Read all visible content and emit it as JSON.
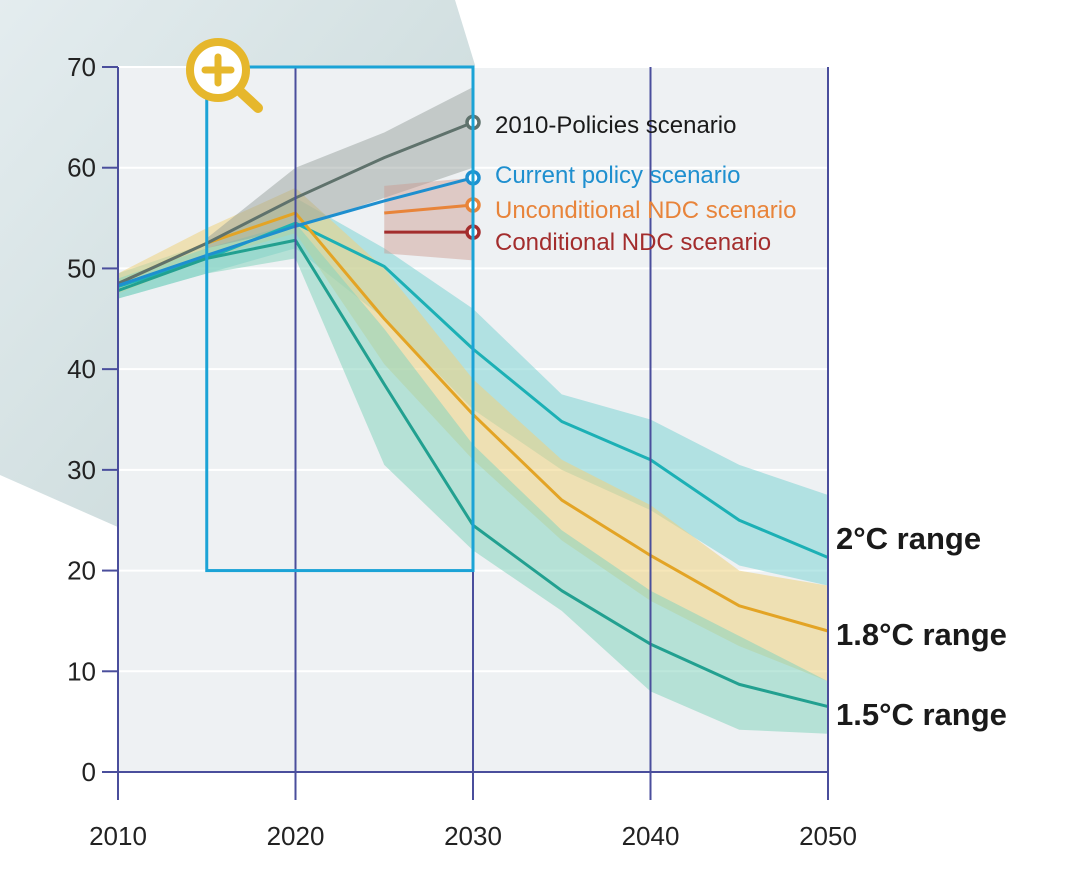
{
  "chart_data": {
    "type": "line",
    "title": "",
    "xlabel": "",
    "ylabel": "",
    "xlim": [
      2010,
      2050
    ],
    "ylim": [
      0,
      70
    ],
    "xticks": [
      2010,
      2020,
      2030,
      2040,
      2050
    ],
    "yticks": [
      0,
      10,
      20,
      30,
      40,
      50,
      60,
      70
    ],
    "grid": true,
    "zoom_window": {
      "x": [
        2015,
        2030
      ],
      "y": [
        20,
        70
      ]
    },
    "scenarios": [
      {
        "name": "2010-Policies scenario",
        "color": "#5f726c",
        "x": [
          2010,
          2015,
          2020,
          2025,
          2030
        ],
        "values": [
          48.5,
          52.5,
          57,
          61,
          64.5
        ],
        "band_x": [
          2015,
          2020,
          2025,
          2030
        ],
        "band_low": [
          52,
          54,
          57,
          60
        ],
        "band_high": [
          53,
          60,
          63.5,
          68
        ]
      },
      {
        "name": "Current policy scenario",
        "color": "#1e8fcf",
        "x": [
          2010,
          2015,
          2020,
          2025,
          2030
        ],
        "values": [
          48.3,
          51.3,
          54.2,
          56.7,
          59
        ]
      },
      {
        "name": "Unconditional NDC scenario",
        "color": "#e8843a",
        "x": [
          2025,
          2030
        ],
        "values": [
          55.5,
          56.3
        ],
        "band_low": [
          51.5,
          50.8
        ],
        "band_high": [
          58.2,
          59
        ]
      },
      {
        "name": "Conditional NDC scenario",
        "color": "#a32d2d",
        "x": [
          2025,
          2030
        ],
        "values": [
          53.6,
          53.6
        ]
      }
    ],
    "ranges": [
      {
        "name": "2°C range",
        "color": "#1cb0b5",
        "band_color": "#7fd3d3",
        "x": [
          2010,
          2015,
          2020,
          2025,
          2030,
          2035,
          2040,
          2045,
          2050
        ],
        "values": [
          48.2,
          51,
          54.5,
          50.2,
          42,
          34.8,
          31,
          25,
          21.3
        ],
        "low": [
          47,
          49.5,
          52,
          45,
          36,
          30,
          26,
          20.5,
          18.5
        ],
        "high": [
          49.5,
          52.5,
          57,
          52,
          46,
          37.5,
          35,
          30.5,
          27.5
        ]
      },
      {
        "name": "1.8°C range",
        "color": "#e3a425",
        "band_color": "#efd27d",
        "x": [
          2010,
          2015,
          2020,
          2025,
          2030,
          2035,
          2040,
          2045,
          2050
        ],
        "values": [
          48.5,
          52.5,
          55.5,
          45,
          35.5,
          27,
          21.5,
          16.5,
          14
        ],
        "low": [
          47.5,
          51,
          53.5,
          40.5,
          31,
          23,
          17,
          12.5,
          9
        ],
        "high": [
          49.5,
          54,
          58,
          50,
          39,
          31,
          26.5,
          20,
          18.5
        ]
      },
      {
        "name": "1.5°C range",
        "color": "#22a090",
        "band_color": "#86d4bd",
        "x": [
          2010,
          2015,
          2020,
          2025,
          2030,
          2035,
          2040,
          2045,
          2050
        ],
        "values": [
          47.8,
          51,
          52.8,
          38.5,
          24.5,
          18,
          12.7,
          8.7,
          6.5
        ],
        "low": [
          47,
          49.5,
          51,
          30.5,
          22,
          16,
          8,
          4.2,
          3.8
        ],
        "high": [
          49,
          52,
          54.5,
          44,
          32.5,
          24,
          18,
          13.5,
          9
        ]
      }
    ]
  }
}
